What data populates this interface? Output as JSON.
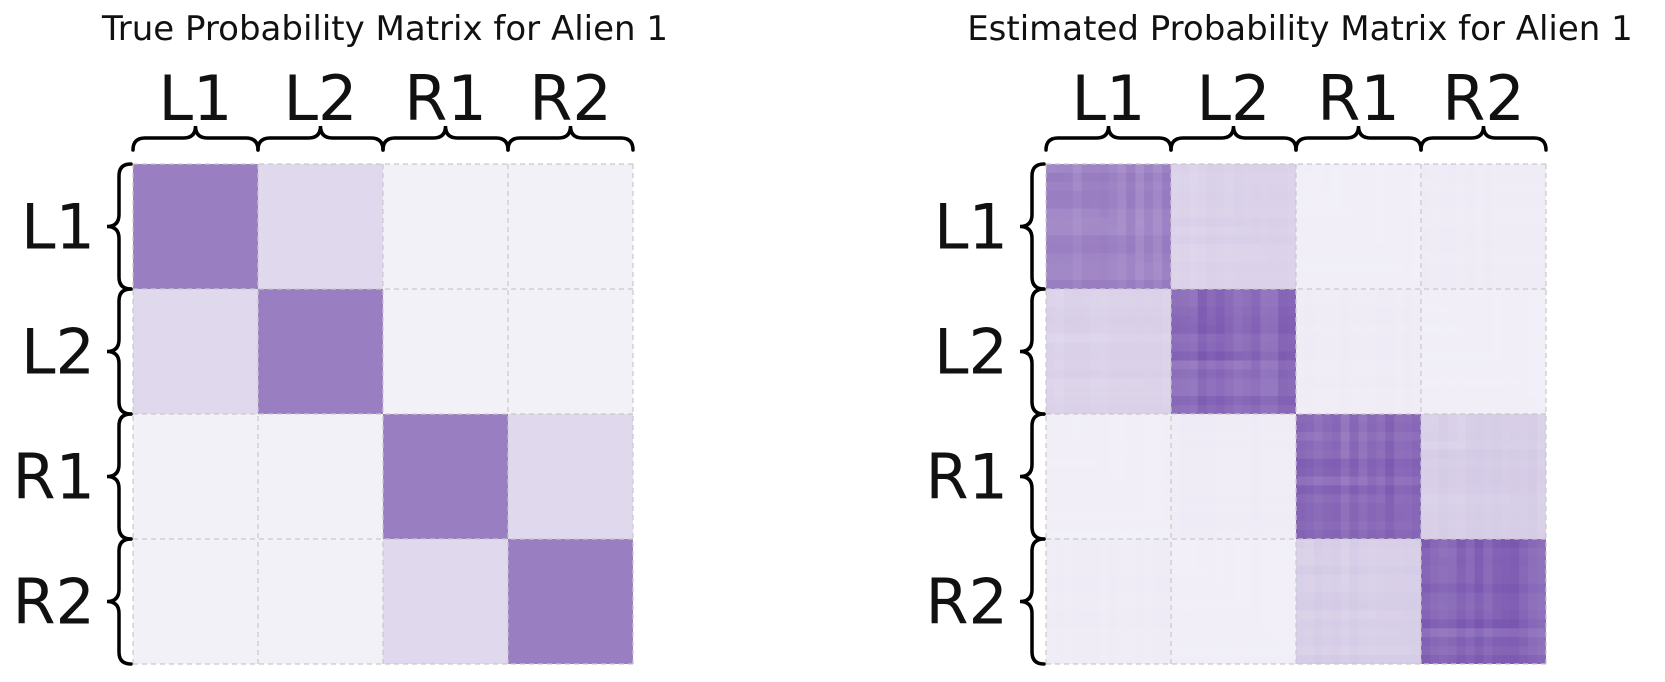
{
  "chart_data": [
    {
      "type": "heatmap",
      "title": "True Probability Matrix for Alien 1",
      "row_labels": [
        "L1",
        "L2",
        "R1",
        "R2"
      ],
      "col_labels": [
        "L1",
        "L2",
        "R1",
        "R2"
      ],
      "colormap": "Purples",
      "values": [
        [
          0.6,
          0.15,
          0.03,
          0.03
        ],
        [
          0.15,
          0.6,
          0.03,
          0.03
        ],
        [
          0.03,
          0.03,
          0.6,
          0.15
        ],
        [
          0.03,
          0.03,
          0.15,
          0.6
        ]
      ]
    },
    {
      "type": "heatmap",
      "title": "Estimated Probability Matrix for Alien 1",
      "row_labels": [
        "L1",
        "L2",
        "R1",
        "R2"
      ],
      "col_labels": [
        "L1",
        "L2",
        "R1",
        "R2"
      ],
      "colormap": "Purples",
      "values": [
        [
          0.55,
          0.18,
          0.04,
          0.05
        ],
        [
          0.18,
          0.7,
          0.05,
          0.04
        ],
        [
          0.04,
          0.05,
          0.68,
          0.2
        ],
        [
          0.05,
          0.04,
          0.2,
          0.7
        ]
      ]
    }
  ],
  "colors": {
    "low": "#f8f7fb",
    "high": "#5a2d9c",
    "mid_true": "#8883bd",
    "grid": "#c8c8c8",
    "brace": "#000000"
  }
}
